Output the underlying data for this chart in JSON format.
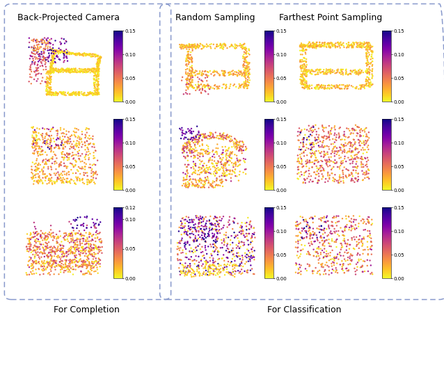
{
  "title_left": "Back-Projected Camera",
  "title_right1": "Random Sampling",
  "title_right2": "Farthest Point Sampling",
  "label_left": "For Completion",
  "label_right": "For Classification",
  "colormap": "plasma_r",
  "vmin": 0.0,
  "vmax": 0.15,
  "colorbar_ticks_std": [
    0.0,
    0.05,
    0.1,
    0.15
  ],
  "colorbar_ticks_r3c1": [
    0.0,
    0.05,
    0.1,
    0.12
  ],
  "box_color": "#8899cc",
  "background": "#ffffff",
  "point_size": 3,
  "title_fontsize": 9,
  "label_fontsize": 9,
  "cbar_fontsize": 5
}
